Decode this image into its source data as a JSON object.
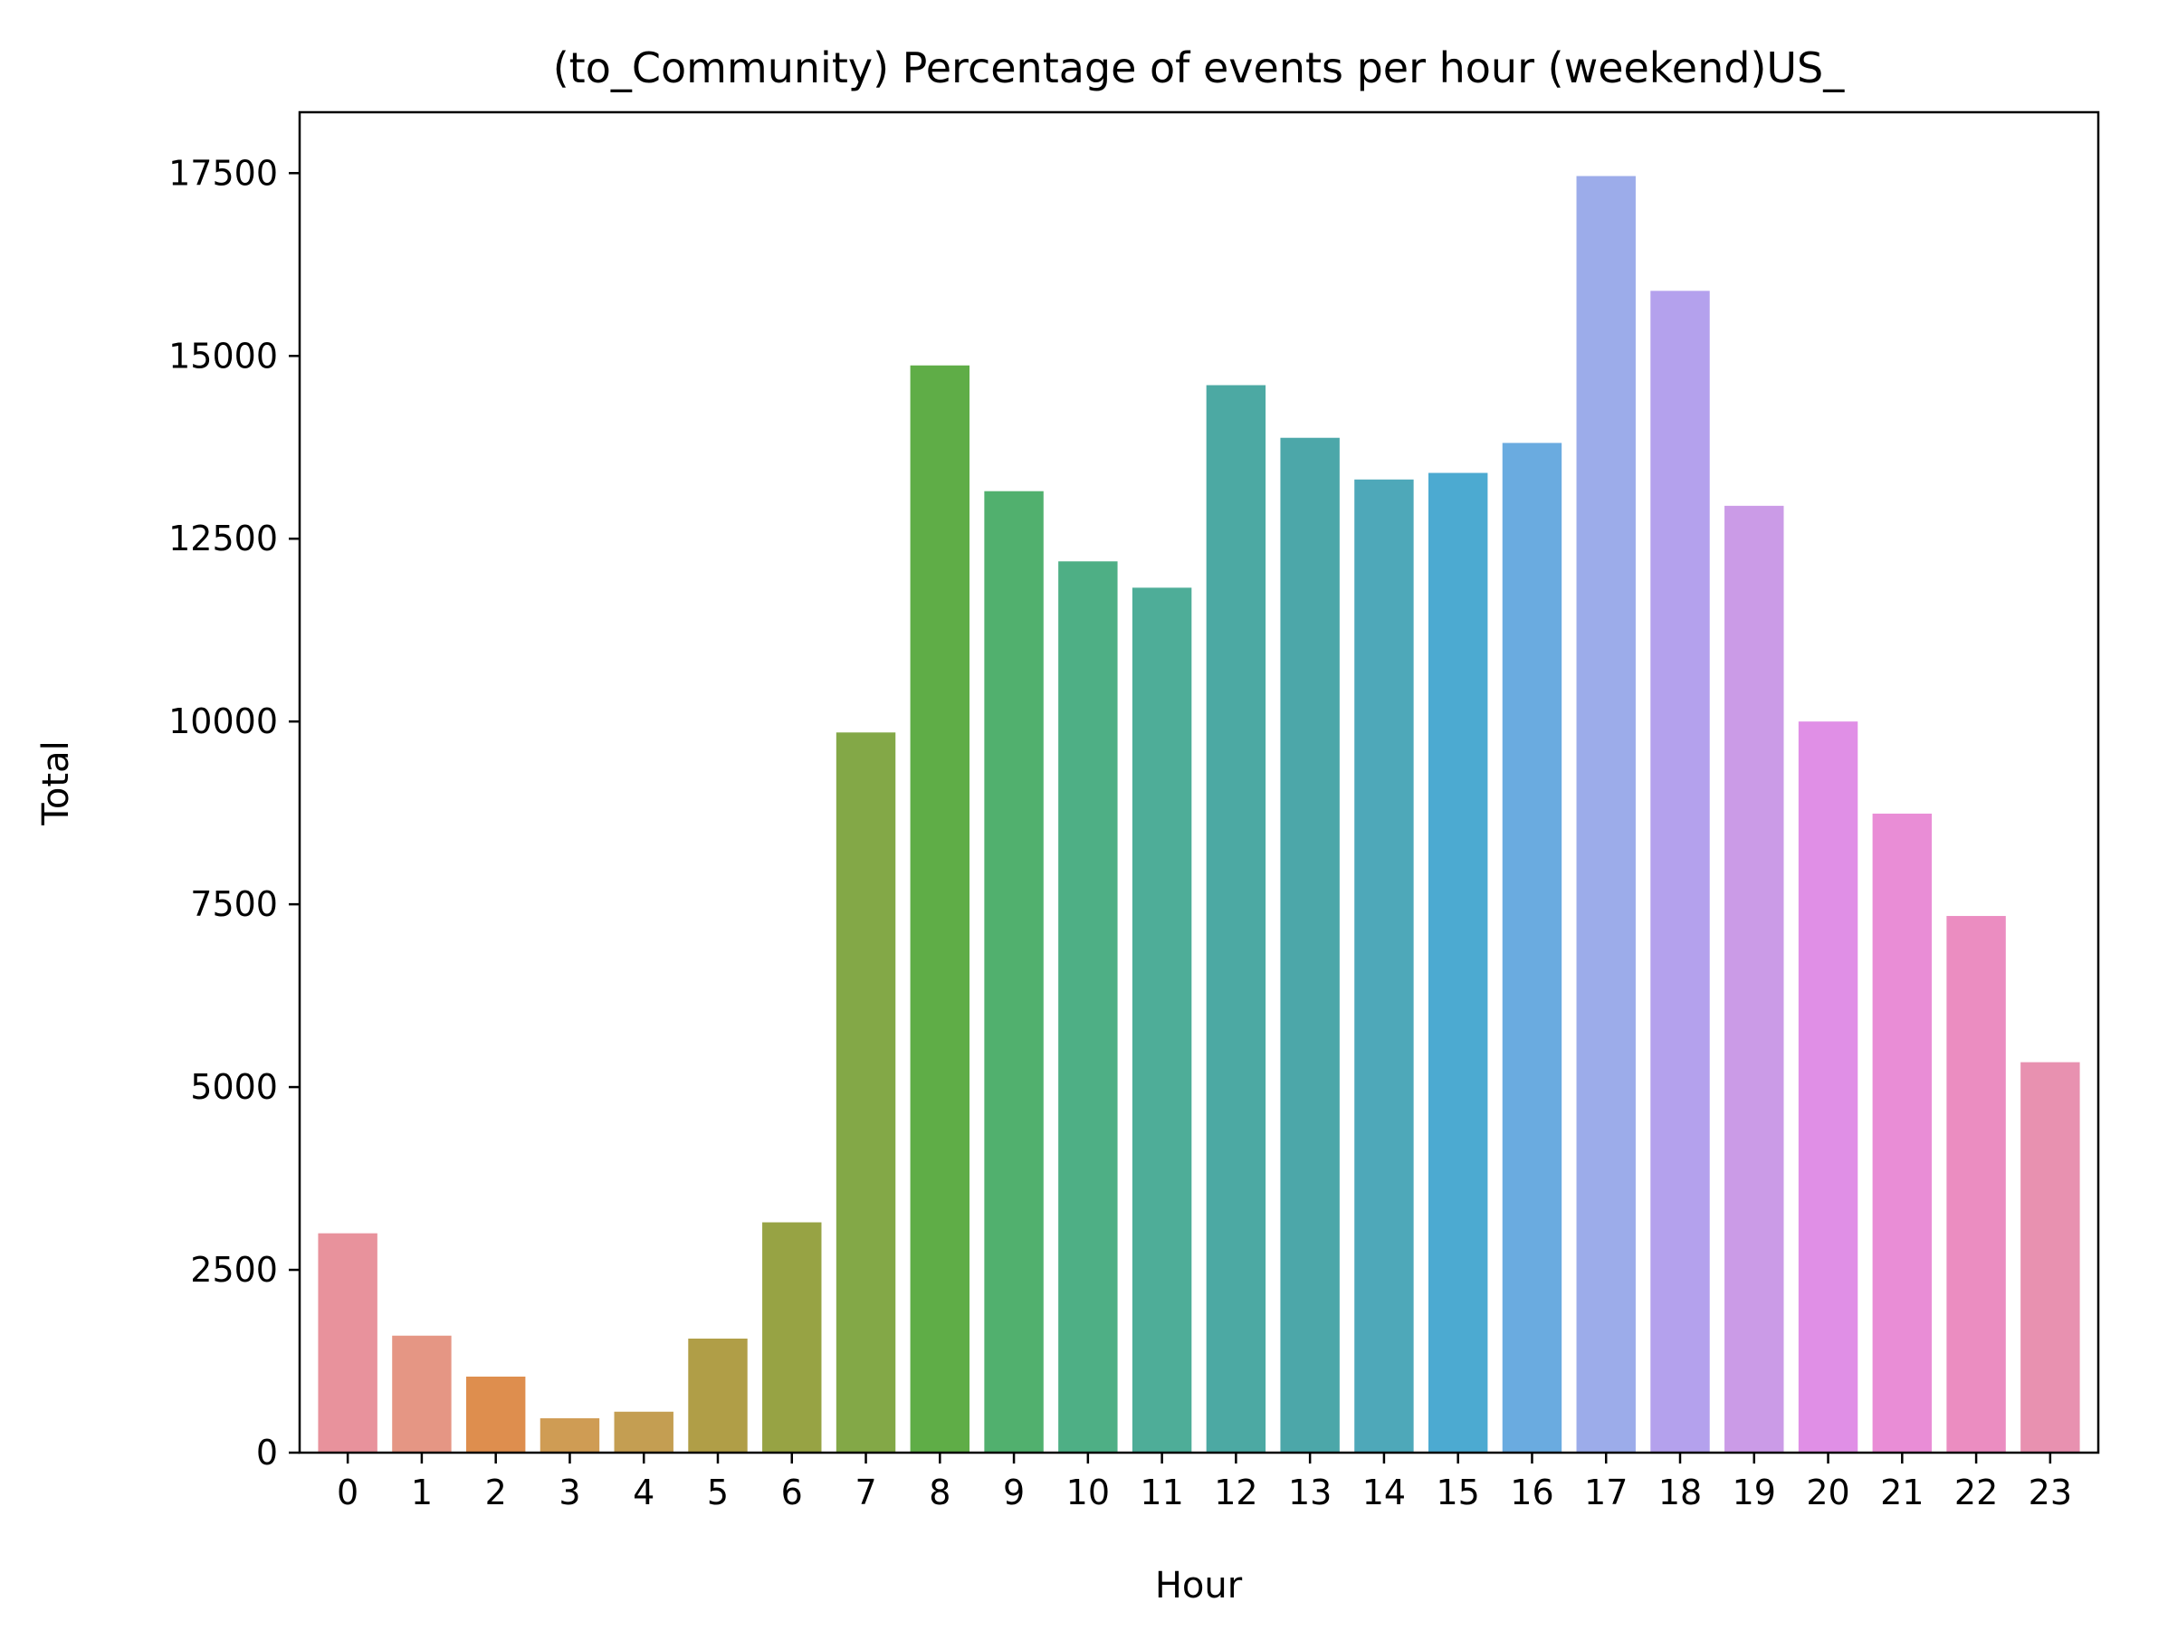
{
  "chart_data": {
    "type": "bar",
    "title": "(to_Community) Percentage of events per hour (weekend)US_",
    "xlabel": "Hour",
    "ylabel": "Total",
    "categories": [
      "0",
      "1",
      "2",
      "3",
      "4",
      "5",
      "6",
      "7",
      "8",
      "9",
      "10",
      "11",
      "12",
      "13",
      "14",
      "15",
      "16",
      "17",
      "18",
      "19",
      "20",
      "21",
      "22",
      "23"
    ],
    "values": [
      3000,
      1600,
      1040,
      470,
      560,
      1560,
      3150,
      9850,
      14870,
      13150,
      12190,
      11830,
      14600,
      13880,
      13310,
      13400,
      13810,
      17460,
      15890,
      12950,
      10000,
      8740,
      7340,
      5340
    ],
    "colors": [
      "#e8929c",
      "#e59684",
      "#de8e4e",
      "#cf9c54",
      "#c49e52",
      "#b09e47",
      "#97a344",
      "#83a847",
      "#5fad47",
      "#51b06e",
      "#4eaf85",
      "#4ead98",
      "#4ca9a3",
      "#4ca7a9",
      "#4ea8b9",
      "#4caad1",
      "#6aabe0",
      "#9cacea",
      "#b4a1ed",
      "#cb9be7",
      "#e08fe6",
      "#e98dd6",
      "#eb8dc1",
      "#e891b0"
    ],
    "yticks": [
      0,
      2500,
      5000,
      7500,
      10000,
      12500,
      15000,
      17500
    ],
    "ylim": [
      0,
      18333
    ],
    "grid": false,
    "legend": "none"
  }
}
